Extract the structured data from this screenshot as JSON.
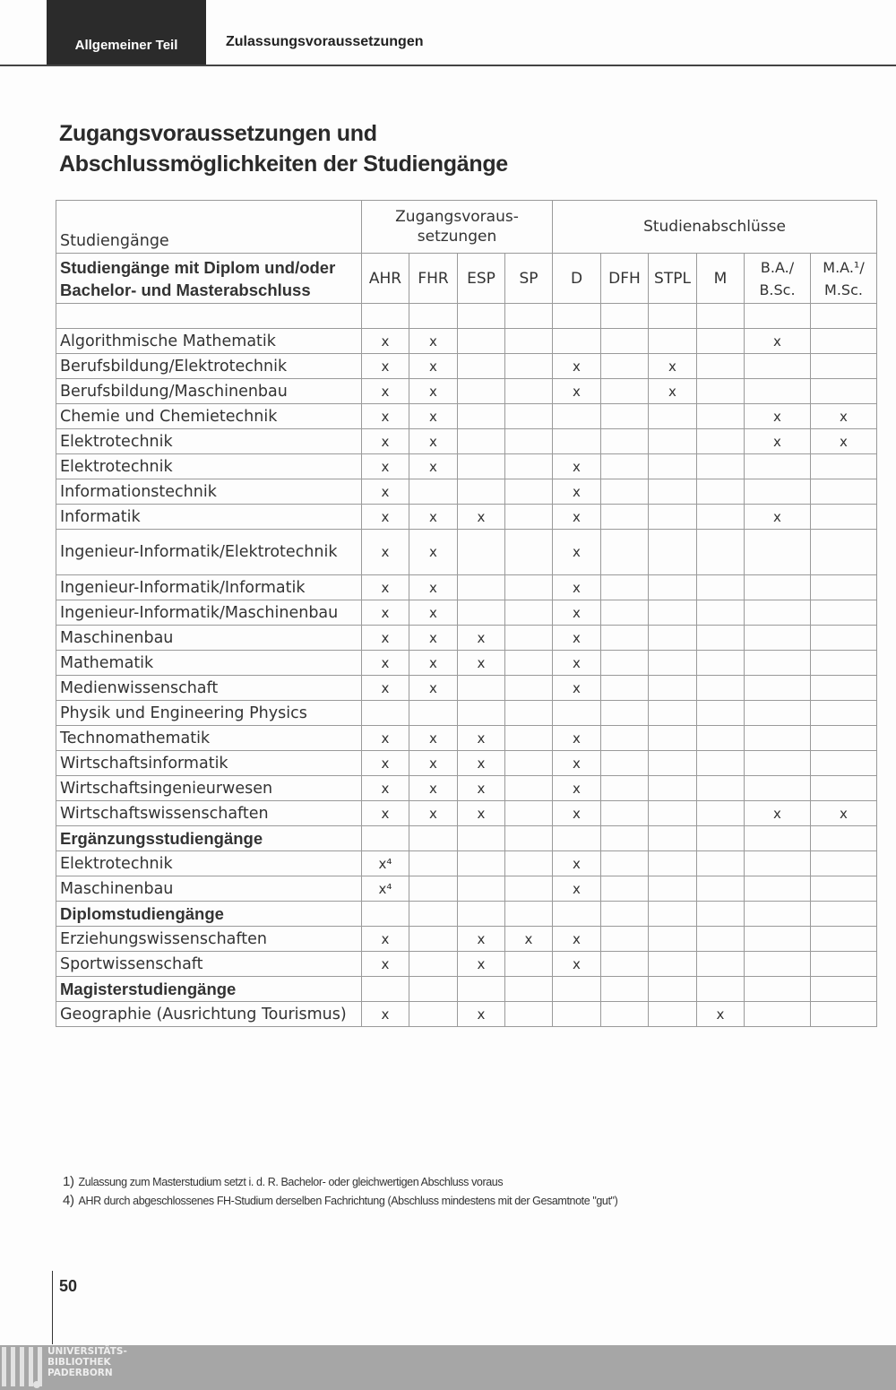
{
  "header": {
    "tab": "Allgemeiner Teil",
    "section": "Zulassungsvoraussetzungen"
  },
  "title": {
    "line1": "Zugangsvoraussetzungen und",
    "line2": "Abschlussmöglichkeiten der Studiengänge"
  },
  "table": {
    "col_studiengaenge": "Studiengänge",
    "group_zugang": "Zugangsvoraus-setzungen",
    "group_abschluss": "Studienabschlüsse",
    "subheader": "Studiengänge mit Diplom und/oder Bachelor- und Masterabschluss",
    "columns": [
      "AHR",
      "FHR",
      "ESP",
      "SP",
      "D",
      "DFH",
      "STPL",
      "M",
      "B.A./ B.Sc.",
      "M.A.¹/ M.Sc."
    ],
    "rows": [
      {
        "label": "",
        "marks": [
          "",
          "",
          "",
          "",
          "",
          "",
          "",
          "",
          "",
          ""
        ]
      },
      {
        "label": "Algorithmische Mathematik",
        "marks": [
          "x",
          "x",
          "",
          "",
          "",
          "",
          "",
          "",
          "x",
          ""
        ]
      },
      {
        "label": "Berufsbildung/Elektrotechnik",
        "marks": [
          "x",
          "x",
          "",
          "",
          "x",
          "",
          "x",
          "",
          "",
          ""
        ]
      },
      {
        "label": "Berufsbildung/Maschinenbau",
        "marks": [
          "x",
          "x",
          "",
          "",
          "x",
          "",
          "x",
          "",
          "",
          ""
        ]
      },
      {
        "label": "Chemie und Chemietechnik",
        "marks": [
          "x",
          "x",
          "",
          "",
          "",
          "",
          "",
          "",
          "x",
          "x"
        ]
      },
      {
        "label": "Elektrotechnik",
        "marks": [
          "x",
          "x",
          "",
          "",
          "",
          "",
          "",
          "",
          "x",
          "x"
        ]
      },
      {
        "label": "Elektrotechnik",
        "marks": [
          "x",
          "x",
          "",
          "",
          "x",
          "",
          "",
          "",
          "",
          ""
        ]
      },
      {
        "label": "Informationstechnik",
        "marks": [
          "x",
          "",
          "",
          "",
          "x",
          "",
          "",
          "",
          "",
          ""
        ]
      },
      {
        "label": "Informatik",
        "marks": [
          "x",
          "x",
          "x",
          "",
          "x",
          "",
          "",
          "",
          "x",
          ""
        ]
      },
      {
        "label": "Ingenieur-Informatik/Elektrotechnik",
        "marks": [
          "x",
          "x",
          "",
          "",
          "x",
          "",
          "",
          "",
          "",
          ""
        ]
      },
      {
        "label": "Ingenieur-Informatik/Informatik",
        "marks": [
          "x",
          "x",
          "",
          "",
          "x",
          "",
          "",
          "",
          "",
          ""
        ]
      },
      {
        "label": "Ingenieur-Informatik/Maschinenbau",
        "marks": [
          "x",
          "x",
          "",
          "",
          "x",
          "",
          "",
          "",
          "",
          ""
        ]
      },
      {
        "label": "Maschinenbau",
        "marks": [
          "x",
          "x",
          "x",
          "",
          "x",
          "",
          "",
          "",
          "",
          ""
        ]
      },
      {
        "label": "Mathematik",
        "marks": [
          "x",
          "x",
          "x",
          "",
          "x",
          "",
          "",
          "",
          "",
          ""
        ]
      },
      {
        "label": "Medienwissenschaft",
        "marks": [
          "x",
          "x",
          "",
          "",
          "x",
          "",
          "",
          "",
          "",
          ""
        ]
      },
      {
        "label": "Physik und Engineering Physics",
        "marks": [
          "",
          "",
          "",
          "",
          "",
          "",
          "",
          "",
          "",
          ""
        ]
      },
      {
        "label": "Technomathematik",
        "marks": [
          "x",
          "x",
          "x",
          "",
          "x",
          "",
          "",
          "",
          "",
          ""
        ]
      },
      {
        "label": "Wirtschaftsinformatik",
        "marks": [
          "x",
          "x",
          "x",
          "",
          "x",
          "",
          "",
          "",
          "",
          ""
        ]
      },
      {
        "label": "Wirtschaftsingenieurwesen",
        "marks": [
          "x",
          "x",
          "x",
          "",
          "x",
          "",
          "",
          "",
          "",
          ""
        ]
      },
      {
        "label": "Wirtschaftswissenschaften",
        "marks": [
          "x",
          "x",
          "x",
          "",
          "x",
          "",
          "",
          "",
          "x",
          "x"
        ]
      },
      {
        "label": "Ergänzungsstudiengänge",
        "bold": true,
        "marks": [
          "",
          "",
          "",
          "",
          "",
          "",
          "",
          "",
          "",
          ""
        ]
      },
      {
        "label": "Elektrotechnik",
        "marks": [
          "x⁴",
          "",
          "",
          "",
          "x",
          "",
          "",
          "",
          "",
          ""
        ]
      },
      {
        "label": "Maschinenbau",
        "marks": [
          "x⁴",
          "",
          "",
          "",
          "x",
          "",
          "",
          "",
          "",
          ""
        ]
      },
      {
        "label": "Diplomstudiengänge",
        "bold": true,
        "marks": [
          "",
          "",
          "",
          "",
          "",
          "",
          "",
          "",
          "",
          ""
        ]
      },
      {
        "label": "Erziehungswissenschaften",
        "marks": [
          "x",
          "",
          "x",
          "x",
          "x",
          "",
          "",
          "",
          "",
          ""
        ]
      },
      {
        "label": "Sportwissenschaft",
        "marks": [
          "x",
          "",
          "x",
          "",
          "x",
          "",
          "",
          "",
          "",
          ""
        ]
      },
      {
        "label": "Magisterstudiengänge",
        "bold": true,
        "marks": [
          "",
          "",
          "",
          "",
          "",
          "",
          "",
          "",
          "",
          ""
        ]
      },
      {
        "label": "Geographie (Ausrichtung Tourismus)",
        "marks": [
          "x",
          "",
          "x",
          "",
          "",
          "",
          "",
          "x",
          "",
          ""
        ]
      }
    ]
  },
  "footnotes": [
    {
      "num": "1)",
      "text": "Zulassung zum Masterstudium setzt i. d. R. Bachelor- oder gleichwertigen Abschluss voraus"
    },
    {
      "num": "4)",
      "text": "AHR durch abgeschlossenes FH-Studium derselben Fachrichtung (Abschluss mindestens mit der Gesamtnote \"gut\")"
    }
  ],
  "page_number": "50",
  "logo": {
    "line1": "UNIVERSITÄTS-",
    "line2": "BIBLIOTHEK",
    "line3": "PADERBORN"
  }
}
